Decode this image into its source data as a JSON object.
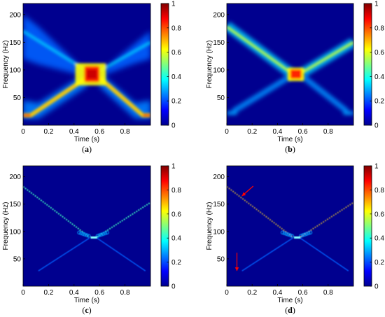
{
  "chart_data": [
    {
      "type": "heatmap",
      "caption_open": "(",
      "caption_letter": "a",
      "caption_close": ")",
      "xlabel": "Time (s)",
      "ylabel": "Frequency (Hz)",
      "xlim": [
        0,
        1
      ],
      "ylim": [
        0,
        220
      ],
      "xticks": [
        "0",
        "0.2",
        "0.4",
        "0.6",
        "0.8"
      ],
      "yticks": [
        "50",
        "100",
        "150",
        "200"
      ],
      "colorbar_ticks": [
        "0",
        "0.2",
        "0.4",
        "0.6",
        "0.8",
        "1"
      ],
      "colorbar_range": [
        0,
        1
      ],
      "colormap": "jet",
      "lines": [
        {
          "from": [
            0,
            20
          ],
          "to": [
            1,
            20
          ],
          "note": "horizontal at low freq near edges"
        },
        {
          "from": [
            0,
            20
          ],
          "to": [
            0.55,
            90
          ]
        },
        {
          "from": [
            0.55,
            90
          ],
          "to": [
            1,
            20
          ]
        },
        {
          "from": [
            0,
            180
          ],
          "to": [
            0.55,
            90
          ]
        },
        {
          "from": [
            0.55,
            90
          ],
          "to": [
            1,
            150
          ]
        }
      ],
      "peak": {
        "t": 0.54,
        "f": 92,
        "value": 1.0
      }
    },
    {
      "type": "heatmap",
      "caption_open": "(",
      "caption_letter": "b",
      "caption_close": ")",
      "xlabel": "Time (s)",
      "ylabel": "Frequency (Hz)",
      "xlim": [
        0,
        1
      ],
      "ylim": [
        0,
        220
      ],
      "xticks": [
        "0",
        "0.2",
        "0.4",
        "0.6",
        "0.8"
      ],
      "yticks": [
        "50",
        "100",
        "150",
        "200"
      ],
      "colorbar_ticks": [
        "0",
        "0.2",
        "0.4",
        "0.6",
        "0.8",
        "1"
      ],
      "colorbar_range": [
        0,
        1
      ],
      "colormap": "jet",
      "peak": {
        "t": 0.54,
        "f": 92,
        "value": 1.0
      }
    },
    {
      "type": "heatmap",
      "caption_open": "(",
      "caption_letter": "c",
      "caption_close": ")",
      "xlabel": "Time (s)",
      "ylabel": "Frequency (Hz)",
      "xlim": [
        0,
        1
      ],
      "ylim": [
        0,
        220
      ],
      "xticks": [
        "0",
        "0.2",
        "0.4",
        "0.6",
        "0.8"
      ],
      "yticks": [
        "50",
        "100",
        "150",
        "200"
      ],
      "colorbar_ticks": [
        "0",
        "0.2",
        "0.4",
        "0.6",
        "0.8",
        "1"
      ],
      "colorbar_range": [
        0,
        1
      ],
      "colormap": "jet"
    },
    {
      "type": "heatmap",
      "caption_open": "(",
      "caption_letter": "d",
      "caption_close": ")",
      "xlabel": "Time (s)",
      "ylabel": "Frequency (Hz)",
      "xlim": [
        0,
        1
      ],
      "ylim": [
        0,
        220
      ],
      "xticks": [
        "0",
        "0.2",
        "0.4",
        "0.6",
        "0.8"
      ],
      "yticks": [
        "50",
        "100",
        "150",
        "200"
      ],
      "colorbar_ticks": [
        "0",
        "0.2",
        "0.4",
        "0.6",
        "0.8",
        "1"
      ],
      "colorbar_range": [
        0,
        1
      ],
      "colormap": "jet",
      "annotations": [
        {
          "type": "arrow",
          "color": "#ff0000",
          "points_to": [
            0.12,
            165
          ]
        },
        {
          "type": "arrow",
          "color": "#ff0000",
          "points_to": [
            0.08,
            28
          ]
        }
      ]
    }
  ]
}
